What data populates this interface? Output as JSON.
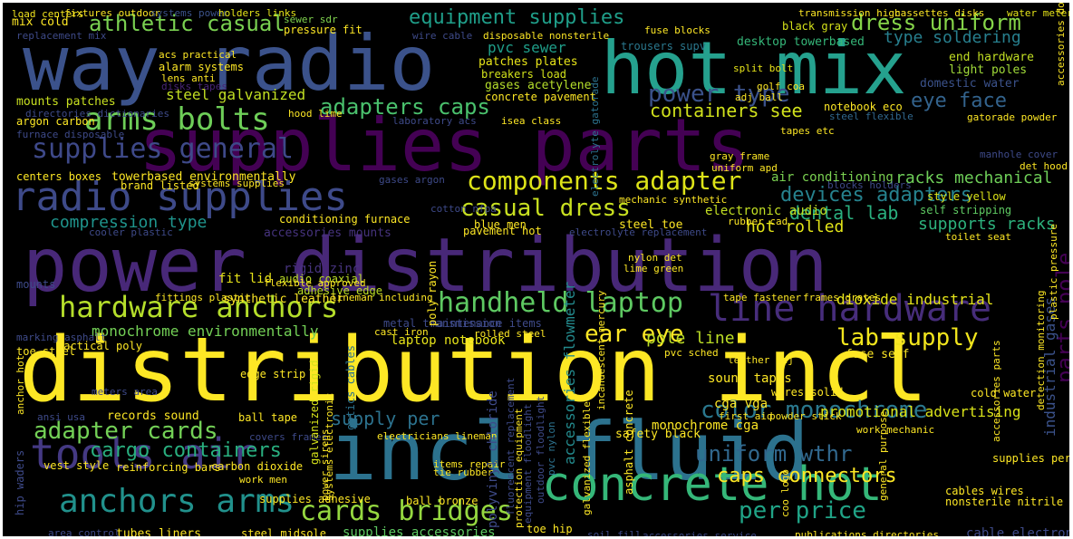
{
  "words": [
    {
      "text": "distribution incl",
      "color": "#fde725"
    },
    {
      "text": "power distribution",
      "color": "#482878"
    },
    {
      "text": "supplies parts",
      "color": "#440154"
    },
    {
      "text": "incl fluid",
      "color": "#2c728e"
    },
    {
      "text": "hot mix",
      "color": "#25a18e"
    },
    {
      "text": "way radio",
      "color": "#3b528b"
    },
    {
      "text": "concrete hot",
      "color": "#35b779"
    },
    {
      "text": "radio supplies",
      "color": "#3e4a89"
    },
    {
      "text": "anchors arms",
      "color": "#21918c"
    },
    {
      "text": "hardware anchors",
      "color": "#b5de2b"
    },
    {
      "text": "tools air",
      "color": "#443983"
    },
    {
      "text": "arms bolts",
      "color": "#6ece58"
    },
    {
      "text": "line hardware",
      "color": "#472d7b"
    },
    {
      "text": "handheld laptop",
      "color": "#5ec962"
    },
    {
      "text": "cards bridges",
      "color": "#95d840"
    },
    {
      "text": "supplies general",
      "color": "#3e4989"
    },
    {
      "text": "components adapter",
      "color": "#dde318"
    },
    {
      "text": "adapter cards",
      "color": "#73d056"
    },
    {
      "text": "casual dress",
      "color": "#c8e020"
    },
    {
      "text": "color monochrome",
      "color": "#2a788e"
    },
    {
      "text": "power type",
      "color": "#3b528b"
    },
    {
      "text": "lab supply",
      "color": "#f1e51d"
    },
    {
      "text": "uniform wthr",
      "color": "#31688e"
    },
    {
      "text": "caps connectors",
      "color": "#fde725"
    },
    {
      "text": "per price",
      "color": "#20a386"
    },
    {
      "text": "dress uniform",
      "color": "#86d549"
    },
    {
      "text": "athletic casual",
      "color": "#7ad151"
    },
    {
      "text": "adapters caps",
      "color": "#4ac16d"
    },
    {
      "text": "equipment supplies",
      "color": "#1f9e89"
    },
    {
      "text": "devices adapters",
      "color": "#26828e"
    },
    {
      "text": "ear eye",
      "color": "#fde725"
    },
    {
      "text": "cargo containers",
      "color": "#29af7f"
    },
    {
      "text": "eye face",
      "color": "#33638d"
    },
    {
      "text": "dental lab",
      "color": "#2ab07f"
    },
    {
      "text": "parts pole",
      "color": "#440154"
    },
    {
      "text": "containers see",
      "color": "#d0e11c"
    },
    {
      "text": "supply per",
      "color": "#2c728e"
    },
    {
      "text": "compression type",
      "color": "#1f948c"
    },
    {
      "text": "racks mechanical",
      "color": "#6ece58"
    },
    {
      "text": "type soldering",
      "color": "#277f8e"
    },
    {
      "text": "pole line",
      "color": "#bddf26"
    },
    {
      "text": "supports racks",
      "color": "#2db27d"
    },
    {
      "text": "hot rolled",
      "color": "#e2e418"
    },
    {
      "text": "steel galvanized",
      "color": "#c2df23"
    },
    {
      "text": "monochrome environmentally",
      "color": "#73d056"
    },
    {
      "text": "accessories flowmeter",
      "color": "#238a8d"
    },
    {
      "text": "dioxide industrial",
      "color": "#e5e419"
    },
    {
      "text": "promotional advertising",
      "color": "#d8e219"
    },
    {
      "text": "laptop notebook",
      "color": "#e7e419"
    },
    {
      "text": "industrial gases",
      "color": "#3b528b"
    },
    {
      "text": "conditioning furnace",
      "color": "#fde725"
    },
    {
      "text": "adhesive edge",
      "color": "#bddf26"
    },
    {
      "text": "rigid zinc",
      "color": "#46337e"
    },
    {
      "text": "audio coaxial",
      "color": "#bddf26"
    },
    {
      "text": "mix cold",
      "color": "#fde725"
    },
    {
      "text": "load centers",
      "color": "#f1e51d"
    },
    {
      "text": "fixtures outdoor",
      "color": "#fde725"
    },
    {
      "text": "systems power",
      "color": "#3b528b"
    },
    {
      "text": "holders links",
      "color": "#e5e419"
    },
    {
      "text": "transmission high",
      "color": "#fde725"
    },
    {
      "text": "water meter",
      "color": "#e5e419"
    },
    {
      "text": "cassettes disks",
      "color": "#fde725"
    },
    {
      "text": "pressure fit",
      "color": "#fde725"
    },
    {
      "text": "sewer sdr",
      "color": "#7fd34e"
    },
    {
      "text": "pvc sewer",
      "color": "#1f9e89"
    },
    {
      "text": "fuse blocks",
      "color": "#fde725"
    },
    {
      "text": "trousers supv",
      "color": "#2a788e"
    },
    {
      "text": "desktop towerbased",
      "color": "#35b779"
    },
    {
      "text": "end hardware",
      "color": "#c2df23"
    },
    {
      "text": "light poles",
      "color": "#a0da39"
    },
    {
      "text": "black gray",
      "color": "#d5e21a"
    },
    {
      "text": "split bolt",
      "color": "#e7e419"
    },
    {
      "text": "golf coa",
      "color": "#fde725"
    },
    {
      "text": "domestic water",
      "color": "#3b528b"
    },
    {
      "text": "adj ball",
      "color": "#fde725"
    },
    {
      "text": "notebook eco",
      "color": "#fde725"
    },
    {
      "text": "steel flexible",
      "color": "#31688e"
    },
    {
      "text": "gatorade powder",
      "color": "#fde725"
    },
    {
      "text": "patches plates",
      "color": "#e7e419"
    },
    {
      "text": "breakers load",
      "color": "#d2e21b"
    },
    {
      "text": "gases acetylene",
      "color": "#b5de2b"
    },
    {
      "text": "concrete pavement",
      "color": "#fde725"
    },
    {
      "text": "disposable nonsterile",
      "color": "#fde725"
    },
    {
      "text": "wire cable",
      "color": "#3e4a89"
    },
    {
      "text": "alarm systems",
      "color": "#fde725"
    },
    {
      "text": "lens anti",
      "color": "#fde725"
    },
    {
      "text": "acs practical",
      "color": "#fde725"
    },
    {
      "text": "mounts patches",
      "color": "#c8e020"
    },
    {
      "text": "disks tapes",
      "color": "#482475"
    },
    {
      "text": "replacement mix",
      "color": "#3e4a89"
    },
    {
      "text": "argon carbon",
      "color": "#fde725"
    },
    {
      "text": "centers boxes",
      "color": "#fde725"
    },
    {
      "text": "towerbased environmentally",
      "color": "#fde725"
    },
    {
      "text": "brand listed",
      "color": "#fde725"
    },
    {
      "text": "systems supplies",
      "color": "#fde725"
    },
    {
      "text": "gases argon",
      "color": "#3e4a89"
    },
    {
      "text": "tapes etc",
      "color": "#fde725"
    },
    {
      "text": "gray frame",
      "color": "#fde725"
    },
    {
      "text": "uniform apd",
      "color": "#fde725"
    },
    {
      "text": "air conditioning",
      "color": "#7ad151"
    },
    {
      "text": "blocks holders",
      "color": "#3e4a89"
    },
    {
      "text": "style yellow",
      "color": "#dde318"
    },
    {
      "text": "self stripping",
      "color": "#5ec962"
    },
    {
      "text": "electronic audio",
      "color": "#c2df23"
    },
    {
      "text": "rubber cad",
      "color": "#fde725"
    },
    {
      "text": "mechanic synthetic",
      "color": "#fde725"
    },
    {
      "text": "blue men",
      "color": "#fde725"
    },
    {
      "text": "cotton nfpa",
      "color": "#3e4a89"
    },
    {
      "text": "steel toe",
      "color": "#fde725"
    },
    {
      "text": "pavement hot",
      "color": "#fde725"
    },
    {
      "text": "electrolyte replacement",
      "color": "#3e4a89"
    },
    {
      "text": "toilet seat",
      "color": "#fde725"
    },
    {
      "text": "fit lid",
      "color": "#e7e419"
    },
    {
      "text": "flexible approved",
      "color": "#fde725"
    },
    {
      "text": "accessories mounts",
      "color": "#46337e"
    },
    {
      "text": "cooler plastic",
      "color": "#3e4a89"
    },
    {
      "text": "nylon det",
      "color": "#fde725"
    },
    {
      "text": "lime green",
      "color": "#fde725"
    },
    {
      "text": "fittings plastic",
      "color": "#fde725"
    },
    {
      "text": "synthetic leather",
      "color": "#fde725"
    },
    {
      "text": "lineman including",
      "color": "#fde725"
    },
    {
      "text": "tape fastener",
      "color": "#fde725"
    },
    {
      "text": "frames grates",
      "color": "#fde725"
    },
    {
      "text": "marking asphalt",
      "color": "#3e4a89"
    },
    {
      "text": "tactical poly",
      "color": "#fde725"
    },
    {
      "text": "toe steel",
      "color": "#fde725"
    },
    {
      "text": "cast iron",
      "color": "#fde725"
    },
    {
      "text": "metal transmission",
      "color": "#3e4a89"
    },
    {
      "text": "rolled steel",
      "color": "#fde725"
    },
    {
      "text": "maintenance items",
      "color": "#3e4a89"
    },
    {
      "text": "edge strip",
      "color": "#fde725"
    },
    {
      "text": "pvc sched",
      "color": "#fde725"
    },
    {
      "text": "leather adj",
      "color": "#fde725"
    },
    {
      "text": "fuse self",
      "color": "#fde725"
    },
    {
      "text": "sound tapes",
      "color": "#fde725"
    },
    {
      "text": "wires solid",
      "color": "#fde725"
    },
    {
      "text": "cga vga",
      "color": "#fde725"
    },
    {
      "text": "cold water",
      "color": "#fde725"
    },
    {
      "text": "meters area",
      "color": "#3e4a89"
    },
    {
      "text": "ansi usa",
      "color": "#3e4a89"
    },
    {
      "text": "records sound",
      "color": "#fde725"
    },
    {
      "text": "ball tape",
      "color": "#fde725"
    },
    {
      "text": "covers frames",
      "color": "#3e4a89"
    },
    {
      "text": "first aid",
      "color": "#fde725"
    },
    {
      "text": "powder stick",
      "color": "#fde725"
    },
    {
      "text": "monochrome cga",
      "color": "#fde725"
    },
    {
      "text": "safety black",
      "color": "#fde725"
    },
    {
      "text": "work mechanic",
      "color": "#fde725"
    },
    {
      "text": "cables wires",
      "color": "#fde725"
    },
    {
      "text": "nonsterile nitrile",
      "color": "#fde725"
    },
    {
      "text": "supplies per",
      "color": "#fde725"
    },
    {
      "text": "cable electronic",
      "color": "#3e4a89"
    },
    {
      "text": "publications directories",
      "color": "#fde725"
    },
    {
      "text": "accessories service",
      "color": "#3e4a89"
    },
    {
      "text": "soil fill",
      "color": "#3e4a89"
    },
    {
      "text": "toe hip",
      "color": "#fde725"
    },
    {
      "text": "supplies accessories",
      "color": "#5ec962"
    },
    {
      "text": "steel midsole",
      "color": "#fde725"
    },
    {
      "text": "tubes liners",
      "color": "#fde725"
    },
    {
      "text": "area control",
      "color": "#3e4a89"
    },
    {
      "text": "supplies adhesive",
      "color": "#fde725"
    },
    {
      "text": "ball bronze",
      "color": "#fde725"
    },
    {
      "text": "tie rubber",
      "color": "#fde725"
    },
    {
      "text": "items repair",
      "color": "#fde725"
    },
    {
      "text": "electricians lineman",
      "color": "#fde725"
    },
    {
      "text": "reinforcing bars",
      "color": "#fde725"
    },
    {
      "text": "carbon dioxide",
      "color": "#fde725"
    },
    {
      "text": "work men",
      "color": "#fde725"
    },
    {
      "text": "vest style",
      "color": "#fde725"
    },
    {
      "text": "mounts",
      "color": "#3e4a89"
    },
    {
      "text": "directories dictionaries",
      "color": "#3e4a89"
    },
    {
      "text": "hood lime",
      "color": "#fde725"
    },
    {
      "text": "laboratory acs",
      "color": "#3e4a89"
    },
    {
      "text": "isea class",
      "color": "#fde725"
    },
    {
      "text": "furnace disposable",
      "color": "#3e4a89"
    },
    {
      "text": "manhole cover",
      "color": "#3e4a89"
    },
    {
      "text": "det hood",
      "color": "#fde725"
    },
    {
      "text": "poly rayon",
      "color": "#fde725"
    },
    {
      "text": "electrolyte gatorade",
      "color": "#2c728e"
    },
    {
      "text": "polyvinyl chloride",
      "color": "#3e4a89"
    },
    {
      "text": "galvanized rigid",
      "color": "#d5e21a"
    },
    {
      "text": "optics cables",
      "color": "#2c728e"
    },
    {
      "text": "power sirens",
      "color": "#fde725"
    },
    {
      "text": "systems electronic",
      "color": "#fde725"
    },
    {
      "text": "pvc nylon",
      "color": "#2c728e"
    },
    {
      "text": "fluorescent replacement",
      "color": "#3e4a89"
    },
    {
      "text": "equipment floodlight",
      "color": "#3e4a89"
    },
    {
      "text": "protection equipment",
      "color": "#fde725"
    },
    {
      "text": "outdoor floodlight",
      "color": "#3e4a89"
    },
    {
      "text": "galvanized flexible",
      "color": "#fde725"
    },
    {
      "text": "incandescent mercury",
      "color": "#fde725"
    },
    {
      "text": "asphalt concrete",
      "color": "#fde725"
    },
    {
      "text": "coo logo",
      "color": "#fde725"
    },
    {
      "text": "general purpose",
      "color": "#fde725"
    },
    {
      "text": "accessories parts",
      "color": "#fde725"
    },
    {
      "text": "detection monitoring",
      "color": "#fde725"
    },
    {
      "text": "plastic pressure",
      "color": "#fde725"
    },
    {
      "text": "accessories domestic",
      "color": "#fde725"
    },
    {
      "text": "hip waders",
      "color": "#3e4a89"
    },
    {
      "text": "anchor hot",
      "color": "#fde725"
    },
    {
      "text": "cables interconnecting",
      "color": "#3e4a89"
    }
  ]
}
